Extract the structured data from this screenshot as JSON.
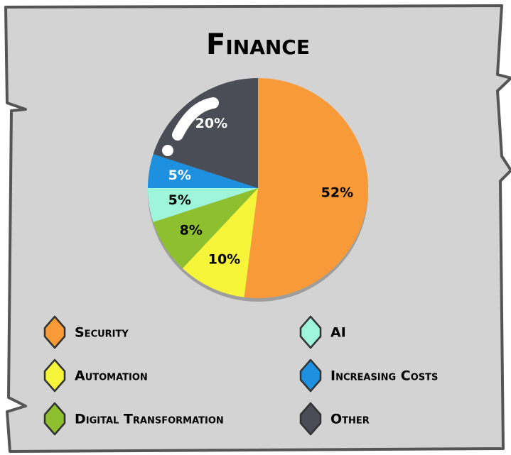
{
  "chart_data": {
    "type": "pie",
    "title": "Finance",
    "categories": [
      "Security",
      "Automation",
      "Digital Transformation",
      "AI",
      "Increasing Costs",
      "Other"
    ],
    "values": [
      52,
      10,
      8,
      5,
      5,
      20
    ],
    "value_labels": [
      "52%",
      "10%",
      "8%",
      "5%",
      "5%",
      "20%"
    ],
    "colors": [
      "#f99a38",
      "#f7f53a",
      "#8dbf2e",
      "#9ef5da",
      "#1e90e0",
      "#4a4d55"
    ]
  }
}
